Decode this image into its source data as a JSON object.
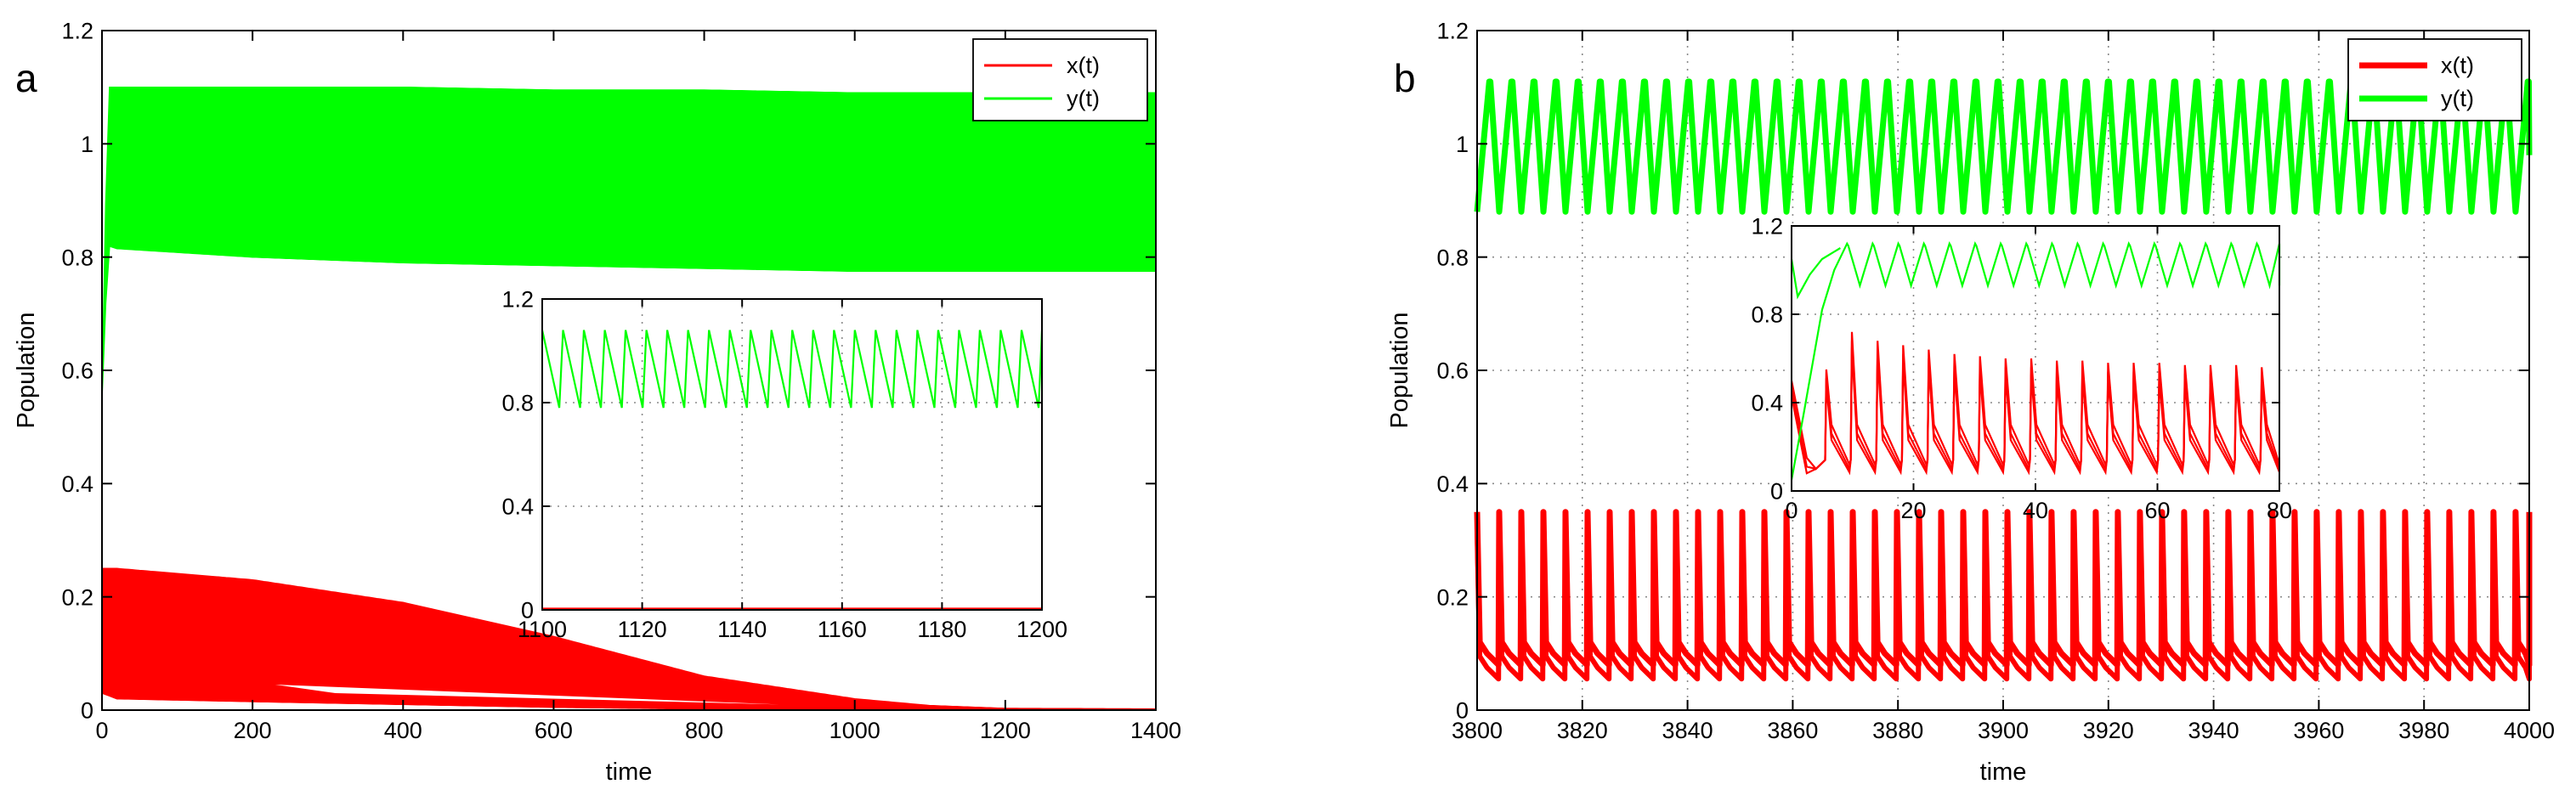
{
  "chart_data": [
    {
      "panel": "a",
      "type": "line",
      "xlabel": "time",
      "ylabel": "Population",
      "xlim": [
        0,
        1400
      ],
      "ylim": [
        0,
        1.2
      ],
      "xticks": [
        0,
        200,
        400,
        600,
        800,
        1000,
        1200,
        1400
      ],
      "yticks": [
        0,
        0.2,
        0.4,
        0.6,
        0.8,
        1.0,
        1.2
      ],
      "xtick_labels": [
        "0",
        "200",
        "400",
        "600",
        "800",
        "1000",
        "1200",
        "1400"
      ],
      "ytick_labels": [
        "0",
        "0.2",
        "0.4",
        "0.6",
        "0.8",
        "1",
        "1.2"
      ],
      "grid": false,
      "legend": {
        "position": "top-right",
        "entries": [
          "x(t)",
          "y(t)"
        ]
      },
      "series": [
        {
          "name": "x(t)",
          "color": "#ff0000",
          "kind": "dense-oscillation-band",
          "x": [
            0,
            20,
            200,
            400,
            600,
            800,
            1000,
            1100,
            1200,
            1400
          ],
          "upper": [
            0.25,
            0.25,
            0.23,
            0.19,
            0.13,
            0.06,
            0.02,
            0.008,
            0.003,
            0.002
          ],
          "lower": [
            0.03,
            0.02,
            0.015,
            0.01,
            0.005,
            0.002,
            0.0,
            0.0,
            0.0,
            0.0
          ]
        },
        {
          "name": "y(t)",
          "color": "#00ff00",
          "kind": "dense-oscillation-band",
          "x": [
            0,
            8,
            20,
            200,
            400,
            600,
            800,
            1000,
            1200,
            1400
          ],
          "upper": [
            0.55,
            1.1,
            1.1,
            1.1,
            1.1,
            1.095,
            1.095,
            1.09,
            1.09,
            1.09
          ],
          "lower": [
            0.55,
            0.82,
            0.815,
            0.8,
            0.79,
            0.785,
            0.78,
            0.775,
            0.775,
            0.775
          ]
        }
      ],
      "inset": {
        "xlim": [
          1100,
          1200
        ],
        "ylim": [
          0,
          1.2
        ],
        "xticks": [
          1100,
          1120,
          1140,
          1160,
          1180,
          1200
        ],
        "yticks": [
          0,
          0.4,
          0.8,
          1.2
        ],
        "xtick_labels": [
          "1100",
          "1120",
          "1140",
          "1160",
          "1180",
          "1200"
        ],
        "ytick_labels": [
          "0",
          "0.4",
          "0.8",
          "1.2"
        ],
        "series": [
          {
            "name": "x(t)",
            "color": "#ff0000",
            "kind": "flat",
            "value": 0.005
          },
          {
            "name": "y(t)",
            "color": "#00ff00",
            "kind": "sawtooth",
            "period": 4.17,
            "min": 0.78,
            "max": 1.08
          }
        ]
      }
    },
    {
      "panel": "b",
      "type": "line",
      "xlabel": "time",
      "ylabel": "Population",
      "xlim": [
        3800,
        4000
      ],
      "ylim": [
        0,
        1.2
      ],
      "xticks": [
        3800,
        3820,
        3840,
        3860,
        3880,
        3900,
        3920,
        3940,
        3960,
        3980,
        4000
      ],
      "yticks": [
        0,
        0.2,
        0.4,
        0.6,
        0.8,
        1.0,
        1.2
      ],
      "xtick_labels": [
        "3800",
        "3820",
        "3840",
        "3860",
        "3880",
        "3900",
        "3920",
        "3940",
        "3960",
        "3980",
        "4000"
      ],
      "ytick_labels": [
        "0",
        "0.2",
        "0.4",
        "0.6",
        "0.8",
        "1",
        "1.2"
      ],
      "grid": true,
      "legend": {
        "position": "top-right",
        "entries": [
          "x(t)",
          "y(t)"
        ]
      },
      "series": [
        {
          "name": "x(t)",
          "color": "#ff0000",
          "kind": "spikes",
          "period": 4.2,
          "min": 0.08,
          "max": 0.35,
          "shoulder": 0.12
        },
        {
          "name": "y(t)",
          "color": "#00ff00",
          "kind": "sawtooth",
          "period": 4.2,
          "min": 0.88,
          "max": 1.11
        }
      ],
      "inset": {
        "xlim": [
          0,
          80
        ],
        "ylim": [
          0,
          1.2
        ],
        "xticks": [
          0,
          20,
          40,
          60,
          80
        ],
        "yticks": [
          0,
          0.4,
          0.8,
          1.2
        ],
        "xtick_labels": [
          "0",
          "20",
          "40",
          "60",
          "80"
        ],
        "ytick_labels": [
          "0",
          "0.4",
          "0.8",
          "1.2"
        ],
        "series": [
          {
            "name": "x(t)",
            "color": "#ff0000",
            "kind": "transient-spikes",
            "period": 4.2,
            "start": 0.5,
            "peaks": [
              0.55,
              0.72,
              0.68,
              0.66,
              0.64,
              0.62,
              0.61,
              0.6,
              0.6,
              0.59,
              0.59,
              0.58,
              0.58,
              0.58,
              0.57,
              0.57,
              0.57,
              0.56
            ],
            "min": 0.12
          },
          {
            "name": "y(t)",
            "color": "#00ff00",
            "kind": "transient-sawtooth",
            "period": 4.2,
            "start": 0.05,
            "min": 0.93,
            "max": 1.12
          }
        ]
      }
    }
  ]
}
